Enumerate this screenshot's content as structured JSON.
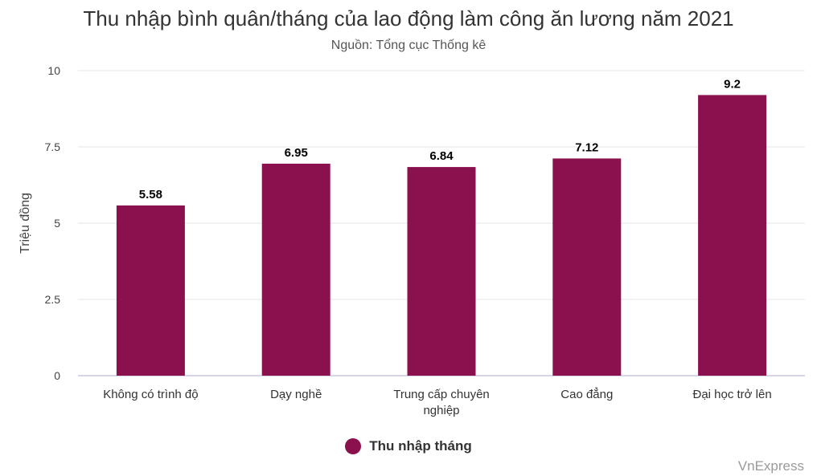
{
  "chart_data": {
    "type": "bar",
    "title": "Thu nhập bình quân/tháng của lao động làm công ăn lương năm 2021",
    "subtitle": "Nguồn: Tổng cục Thống kê",
    "ylabel": "Triệu đồng",
    "xlabel": "",
    "categories": [
      [
        "Không có trình độ"
      ],
      [
        "Dạy nghề"
      ],
      [
        "Trung cấp chuyên",
        "nghiệp"
      ],
      [
        "Cao đẳng"
      ],
      [
        "Đại học trở lên"
      ]
    ],
    "series": [
      {
        "name": "Thu nhập tháng",
        "values": [
          5.58,
          6.95,
          6.84,
          7.12,
          9.2
        ],
        "color": "#8b104e"
      }
    ],
    "data_labels": [
      "5.58",
      "6.95",
      "6.84",
      "7.12",
      "9.2"
    ],
    "ylim": [
      0,
      10
    ],
    "yticks": [
      0,
      2.5,
      5,
      7.5,
      10
    ],
    "ytick_labels": [
      "0",
      "2.5",
      "5",
      "7.5",
      "10"
    ],
    "grid": true,
    "legend_position": "bottom-center"
  },
  "credit": "VnExpress"
}
